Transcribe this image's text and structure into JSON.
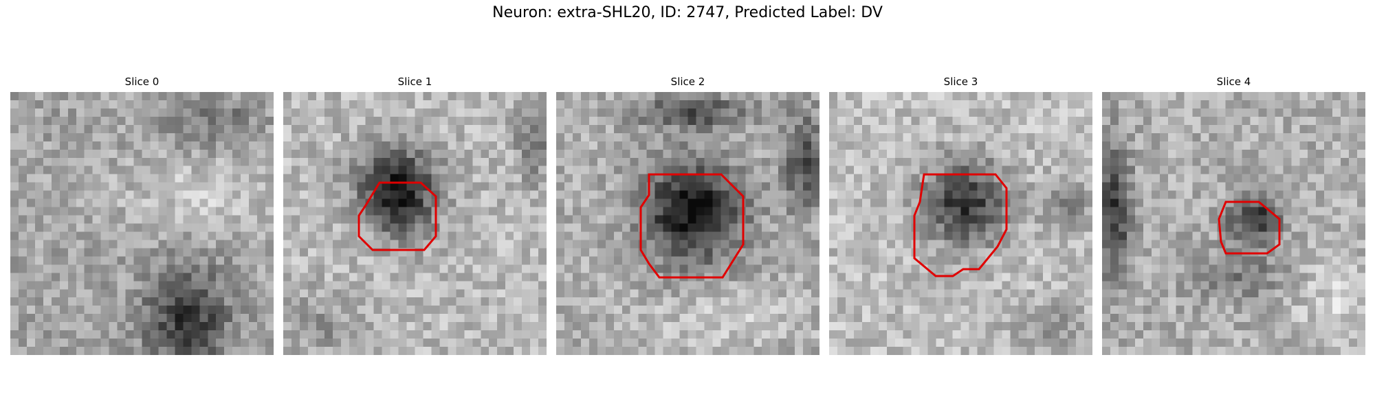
{
  "figure": {
    "title": "Neuron: extra-SHL20, ID: 2747, Predicted Label: DV"
  },
  "panels": [
    {
      "title": "Slice 0",
      "outline": null
    },
    {
      "title": "Slice 1",
      "outline": "octagon-small"
    },
    {
      "title": "Slice 2",
      "outline": "octagon-large"
    },
    {
      "title": "Slice 3",
      "outline": "octagon-medium"
    },
    {
      "title": "Slice 4",
      "outline": "octagon-tiny"
    }
  ],
  "colors": {
    "outline": "#e00000",
    "background": "#ffffff"
  }
}
